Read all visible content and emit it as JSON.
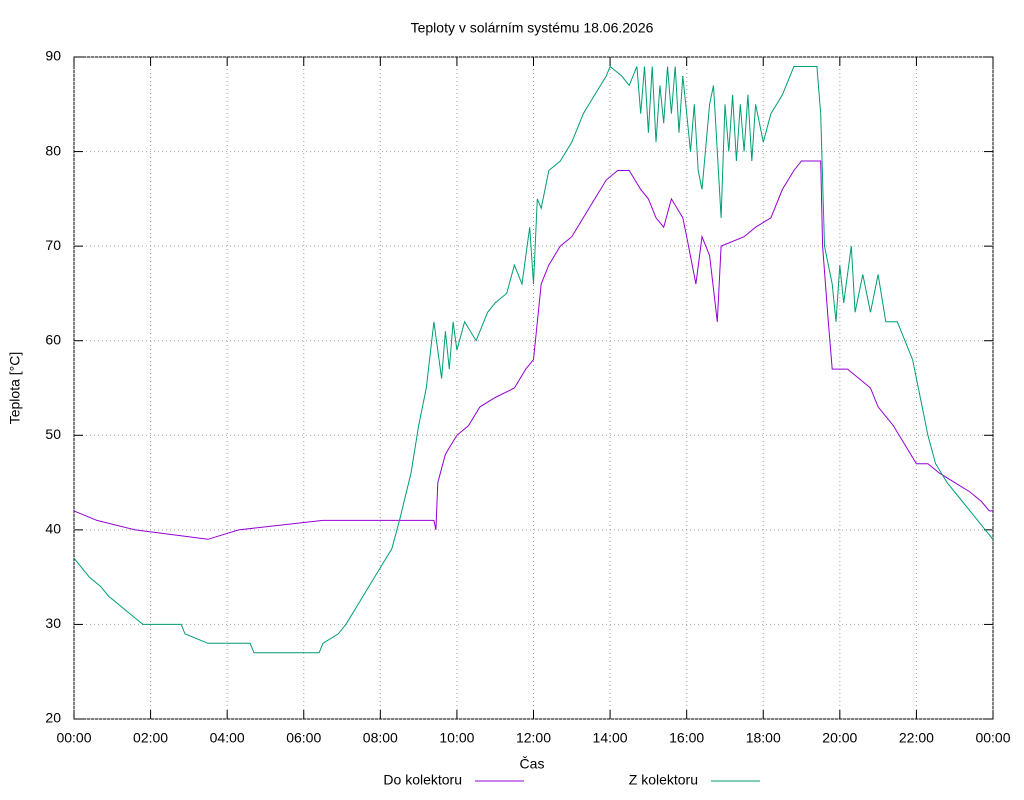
{
  "chart_data": {
    "type": "line",
    "title": "Teploty v solárním systému 18.06.2026",
    "x_label": "Čas",
    "y_label": "Teplota [°C]",
    "xlim": [
      0,
      24
    ],
    "xticks": [
      {
        "value": 0,
        "label": "00:00"
      },
      {
        "value": 2,
        "label": "02:00"
      },
      {
        "value": 4,
        "label": "04:00"
      },
      {
        "value": 6,
        "label": "06:00"
      },
      {
        "value": 8,
        "label": "08:00"
      },
      {
        "value": 10,
        "label": "10:00"
      },
      {
        "value": 12,
        "label": "12:00"
      },
      {
        "value": 14,
        "label": "14:00"
      },
      {
        "value": 16,
        "label": "16:00"
      },
      {
        "value": 18,
        "label": "18:00"
      },
      {
        "value": 20,
        "label": "20:00"
      },
      {
        "value": 22,
        "label": "22:00"
      },
      {
        "value": 24,
        "label": "00:00"
      }
    ],
    "ylim": [
      20,
      90
    ],
    "yticks": [
      20,
      30,
      40,
      50,
      60,
      70,
      80,
      90
    ],
    "grid": true,
    "legend": "bottom",
    "series": [
      {
        "name": "Do kolektoru",
        "color": "#9400d3",
        "x": [
          0,
          0.6,
          1.6,
          3.5,
          4.3,
          6.5,
          9.4,
          9.45,
          9.5,
          9.7,
          10.0,
          10.3,
          10.6,
          11.0,
          11.5,
          11.8,
          12.0,
          12.2,
          12.4,
          12.7,
          13.0,
          13.3,
          13.6,
          13.9,
          14.2,
          14.5,
          14.8,
          15.0,
          15.2,
          15.4,
          15.6,
          15.9,
          16.0,
          16.24,
          16.4,
          16.6,
          16.8,
          16.9,
          17.5,
          17.8,
          18.2,
          18.5,
          18.8,
          19.0,
          19.5,
          19.55,
          19.7,
          19.8,
          20.2,
          20.5,
          20.8,
          21.0,
          21.4,
          21.7,
          22.0,
          22.3,
          22.6,
          23.0,
          23.4,
          23.7,
          23.9,
          24
        ],
        "values": [
          42,
          41,
          40,
          39,
          40,
          41,
          41,
          40,
          45,
          48,
          50,
          51,
          53,
          54,
          55,
          57,
          58,
          66,
          68,
          70,
          71,
          73,
          75,
          77,
          78,
          78,
          76,
          75,
          73,
          72,
          75,
          73,
          71,
          66,
          71,
          69,
          62,
          70,
          71,
          72,
          73,
          76,
          78,
          79,
          79,
          70,
          62,
          57,
          57,
          56,
          55,
          53,
          51,
          49,
          47,
          47,
          46,
          45,
          44,
          43,
          42,
          42
        ]
      },
      {
        "name": "Z kolektoru",
        "color": "#009e73",
        "x": [
          0,
          0.2,
          0.4,
          0.7,
          0.9,
          1.2,
          1.5,
          1.8,
          2.8,
          2.9,
          3.5,
          4.6,
          4.7,
          6.4,
          6.5,
          6.9,
          7.1,
          7.4,
          7.7,
          8.0,
          8.3,
          8.5,
          8.8,
          9.0,
          9.2,
          9.4,
          9.6,
          9.7,
          9.8,
          9.9,
          10.0,
          10.2,
          10.5,
          10.8,
          11.0,
          11.3,
          11.5,
          11.7,
          11.9,
          12.0,
          12.1,
          12.2,
          12.4,
          12.7,
          13.0,
          13.3,
          13.6,
          13.9,
          14.0,
          14.3,
          14.5,
          14.7,
          14.8,
          14.9,
          15.0,
          15.1,
          15.2,
          15.3,
          15.4,
          15.5,
          15.6,
          15.7,
          15.8,
          15.9,
          16.0,
          16.1,
          16.2,
          16.3,
          16.4,
          16.6,
          16.7,
          16.8,
          16.9,
          17.0,
          17.1,
          17.2,
          17.3,
          17.4,
          17.5,
          17.6,
          17.7,
          17.8,
          18.0,
          18.2,
          18.5,
          18.8,
          19.4,
          19.5,
          19.6,
          19.8,
          19.9,
          20.0,
          20.1,
          20.3,
          20.4,
          20.6,
          20.8,
          21.0,
          21.2,
          21.5,
          21.9,
          22.2,
          22.3,
          22.5,
          22.8,
          23.2,
          23.6,
          23.8,
          24
        ],
        "values": [
          37,
          36,
          35,
          34,
          33,
          32,
          31,
          30,
          30,
          29,
          28,
          28,
          27,
          27,
          28,
          29,
          30,
          32,
          34,
          36,
          38,
          41,
          46,
          51,
          55,
          62,
          56,
          61,
          57,
          62,
          59,
          62,
          60,
          63,
          64,
          65,
          68,
          66,
          72,
          66,
          75,
          74,
          78,
          79,
          81,
          84,
          86,
          88,
          89,
          88,
          87,
          89,
          84,
          89,
          82,
          89,
          81,
          87,
          83,
          89,
          84,
          89,
          82,
          88,
          84,
          80,
          85,
          78,
          76,
          85,
          87,
          80,
          73,
          85,
          80,
          86,
          79,
          85,
          80,
          86,
          79,
          85,
          81,
          84,
          86,
          89,
          89,
          84,
          70,
          66,
          62,
          68,
          64,
          70,
          63,
          67,
          63,
          67,
          62,
          62,
          58,
          52,
          50,
          47,
          45,
          43,
          41,
          40,
          39
        ]
      }
    ]
  }
}
